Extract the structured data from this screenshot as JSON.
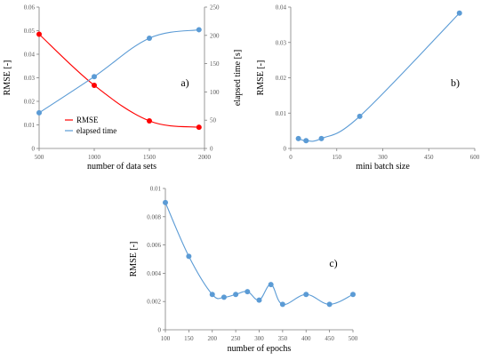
{
  "colors": {
    "red": "#ff0000",
    "blue": "#5b9bd5",
    "axis": "#7f7f7f"
  },
  "chart_data": [
    {
      "panel_label": "a)",
      "type": "line",
      "xlabel": "number of data sets",
      "ylabel": "RMSE [-]",
      "y2label": "elapsed time [s]",
      "xlim": [
        500,
        2000
      ],
      "ylim": [
        0,
        0.06
      ],
      "y2lim": [
        0,
        250
      ],
      "xticks": [
        "500",
        "1000",
        "1500",
        "2000"
      ],
      "yticks": [
        "0",
        "0.01",
        "0.02",
        "0.03",
        "0.04",
        "0.05",
        "0.06"
      ],
      "y2ticks": [
        "0",
        "50",
        "100",
        "150",
        "200",
        "250"
      ],
      "legend_position": "bottom-left",
      "series": [
        {
          "name": "RMSE",
          "axis": "left",
          "color": "#ff0000",
          "x": [
            500,
            1000,
            1500,
            1950
          ],
          "y": [
            0.0485,
            0.0268,
            0.0117,
            0.009
          ]
        },
        {
          "name": "elapsed time",
          "axis": "right",
          "color": "#5b9bd5",
          "x": [
            500,
            1000,
            1500,
            1950
          ],
          "y": [
            63,
            127,
            195,
            210
          ]
        }
      ]
    },
    {
      "panel_label": "b)",
      "type": "line",
      "xlabel": "mini batch size",
      "ylabel": "RMSE [-]",
      "xlim": [
        0,
        600
      ],
      "ylim": [
        0,
        0.04
      ],
      "xticks": [
        "0",
        "150",
        "300",
        "450",
        "600"
      ],
      "yticks": [
        "0",
        "0.01",
        "0.02",
        "0.03",
        "0.04"
      ],
      "series": [
        {
          "color": "#5b9bd5",
          "x": [
            25,
            50,
            100,
            225,
            550
          ],
          "y": [
            0.0028,
            0.0022,
            0.0028,
            0.0091,
            0.0383
          ]
        }
      ]
    },
    {
      "panel_label": "c)",
      "type": "line",
      "xlabel": "number of epochs",
      "ylabel": "RMSE [-]",
      "xlim": [
        100,
        500
      ],
      "ylim": [
        0,
        0.01
      ],
      "xticks": [
        "100",
        "150",
        "200",
        "250",
        "300",
        "350",
        "400",
        "450",
        "500"
      ],
      "yticks": [
        "0",
        "0.002",
        "0.004",
        "0.006",
        "0.008",
        "0.01"
      ],
      "series": [
        {
          "color": "#5b9bd5",
          "x": [
            100,
            150,
            200,
            225,
            250,
            275,
            300,
            325,
            350,
            400,
            450,
            500
          ],
          "y": [
            0.009,
            0.0052,
            0.0025,
            0.0023,
            0.0025,
            0.0027,
            0.0021,
            0.0032,
            0.0018,
            0.0025,
            0.0018,
            0.0025
          ]
        }
      ]
    }
  ]
}
